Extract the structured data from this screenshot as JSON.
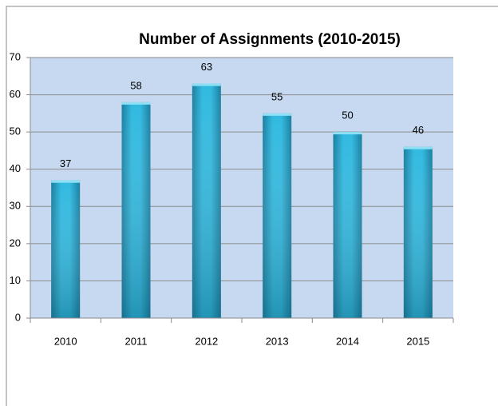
{
  "chart_data": {
    "type": "bar",
    "title": "Number of Assignments (2010-2015)",
    "categories": [
      "2010",
      "2011",
      "2012",
      "2013",
      "2014",
      "2015"
    ],
    "values": [
      37,
      58,
      63,
      55,
      50,
      46
    ],
    "color": "#31b9e0",
    "ylim": [
      0,
      70
    ],
    "yticks": [
      0,
      10,
      20,
      30,
      40,
      50,
      60,
      70
    ],
    "grid": true
  }
}
